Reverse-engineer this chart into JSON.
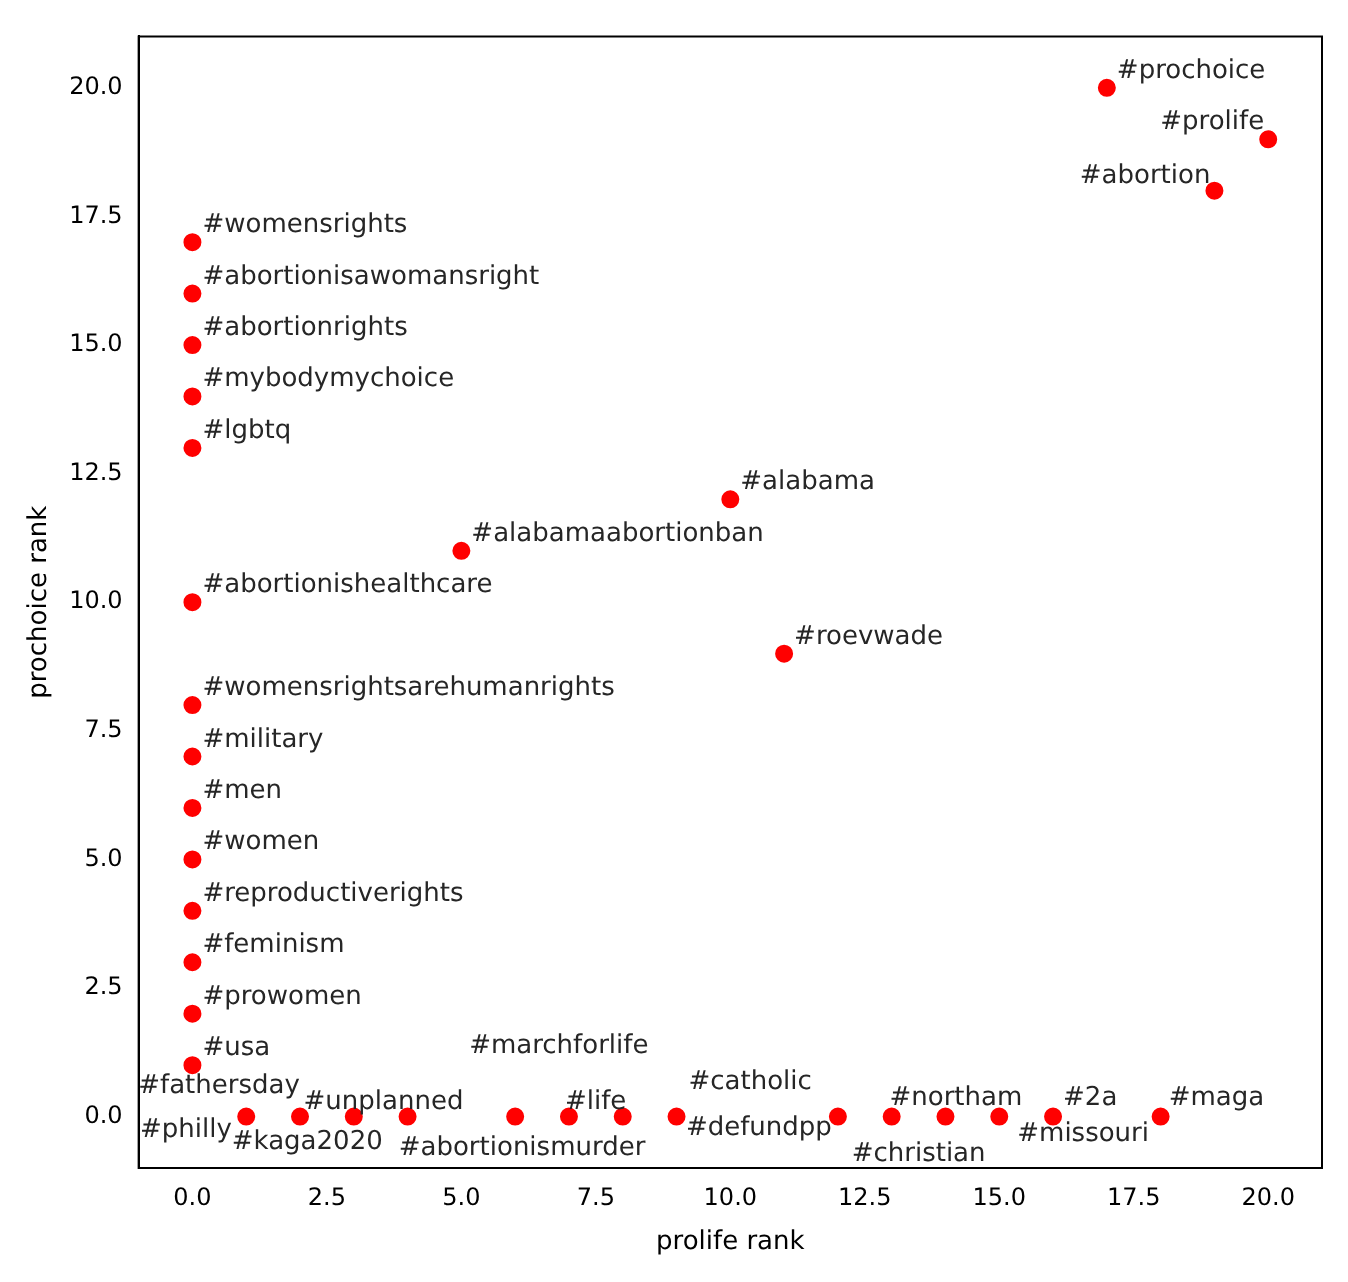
{
  "chart_data": {
    "type": "scatter",
    "xlabel": "prolife rank",
    "ylabel": "prochoice rank",
    "marker": "circle",
    "legend": false,
    "grid": false,
    "xlim": [
      -1,
      21
    ],
    "ylim": [
      -1,
      21
    ],
    "xticks": [
      {
        "value": 0,
        "label": "0.0"
      },
      {
        "value": 2.5,
        "label": "2.5"
      },
      {
        "value": 5,
        "label": "5.0"
      },
      {
        "value": 7.5,
        "label": "7.5"
      },
      {
        "value": 10,
        "label": "10.0"
      },
      {
        "value": 12.5,
        "label": "12.5"
      },
      {
        "value": 15,
        "label": "15.0"
      },
      {
        "value": 17.5,
        "label": "17.5"
      },
      {
        "value": 20,
        "label": "20.0"
      }
    ],
    "yticks": [
      {
        "value": 0,
        "label": "0.0"
      },
      {
        "value": 2.5,
        "label": "2.5"
      },
      {
        "value": 5,
        "label": "5.0"
      },
      {
        "value": 7.5,
        "label": "7.5"
      },
      {
        "value": 10,
        "label": "10.0"
      },
      {
        "value": 12.5,
        "label": "12.5"
      },
      {
        "value": 15,
        "label": "15.0"
      },
      {
        "value": 17.5,
        "label": "17.5"
      },
      {
        "value": 20,
        "label": "20.0"
      }
    ],
    "series": [
      {
        "color": "#ff0000",
        "x": [
          17,
          20,
          19,
          0,
          0,
          0,
          0,
          0,
          5,
          10,
          0,
          11,
          0,
          0,
          0,
          0,
          0,
          0,
          0,
          0,
          1,
          2,
          3,
          4,
          6,
          7,
          8,
          9,
          12,
          13,
          14,
          15,
          16,
          18
        ],
        "values": [
          20,
          19,
          18,
          17,
          16,
          15,
          14,
          13,
          11,
          12,
          10,
          9,
          8,
          7,
          6,
          5,
          4,
          3,
          2,
          1,
          0,
          0,
          0,
          0,
          0,
          0,
          0,
          0,
          0,
          0,
          0,
          0,
          0,
          0
        ]
      }
    ],
    "annotations": [
      {
        "text": "#prochoice",
        "x": 17,
        "y": 20
      },
      {
        "text": "#prolife",
        "x": 20,
        "y": 19
      },
      {
        "text": "#abortion",
        "x": 19,
        "y": 18
      },
      {
        "text": "#womensrights",
        "x": 0,
        "y": 17
      },
      {
        "text": "#abortionisawomansright",
        "x": 0,
        "y": 16
      },
      {
        "text": "#abortionrights",
        "x": 0,
        "y": 15
      },
      {
        "text": "#mybodymychoice",
        "x": 0,
        "y": 14
      },
      {
        "text": "#lgbtq",
        "x": 0,
        "y": 13
      },
      {
        "text": "#alabamaabortionban",
        "x": 5,
        "y": 11
      },
      {
        "text": "#alabama",
        "x": 10,
        "y": 12
      },
      {
        "text": "#abortionishealthcare",
        "x": 0,
        "y": 10
      },
      {
        "text": "#roevwade",
        "x": 11,
        "y": 9
      },
      {
        "text": "#womensrightsarehumanrights",
        "x": 0,
        "y": 8
      },
      {
        "text": "#military",
        "x": 0,
        "y": 7
      },
      {
        "text": "#men",
        "x": 0,
        "y": 6
      },
      {
        "text": "#women",
        "x": 0,
        "y": 5
      },
      {
        "text": "#reproductiverights",
        "x": 0,
        "y": 4
      },
      {
        "text": "#feminism",
        "x": 0,
        "y": 3
      },
      {
        "text": "#prowomen",
        "x": 0,
        "y": 2
      },
      {
        "text": "#usa",
        "x": 0,
        "y": 1
      },
      {
        "text": "#fathersday",
        "x": 1,
        "y": 0
      },
      {
        "text": "#philly",
        "x": 2,
        "y": 0
      },
      {
        "text": "#kaga2020",
        "x": 3,
        "y": 0
      },
      {
        "text": "#unplanned",
        "x": 4,
        "y": 0
      },
      {
        "text": "#marchforlife",
        "x": 6,
        "y": 0
      },
      {
        "text": "#life",
        "x": 7,
        "y": 0
      },
      {
        "text": "#abortionismurder",
        "x": 8,
        "y": 0
      },
      {
        "text": "#catholic",
        "x": 9,
        "y": 0
      },
      {
        "text": "#defundpp",
        "x": 12,
        "y": 0
      },
      {
        "text": "#christian",
        "x": 13,
        "y": 0
      },
      {
        "text": "#northam",
        "x": 14,
        "y": 0
      },
      {
        "text": "#missouri",
        "x": 15,
        "y": 0
      },
      {
        "text": "#2a",
        "x": 16,
        "y": 0
      },
      {
        "text": "#maga",
        "x": 18,
        "y": 0
      }
    ]
  }
}
